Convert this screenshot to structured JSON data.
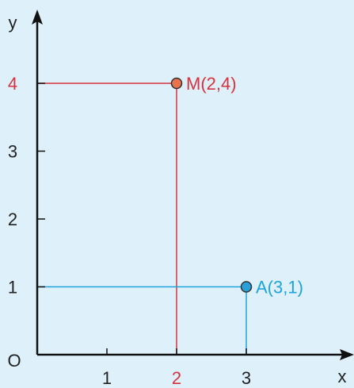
{
  "axes": {
    "x_label": "x",
    "y_label": "y",
    "origin_label": "O",
    "x_range": [
      0,
      4
    ],
    "y_range": [
      0,
      4.6
    ],
    "x_ticks": [
      {
        "value": 1,
        "label": "1",
        "color": "#222222"
      },
      {
        "value": 2,
        "label": "2",
        "color": "#d5343e"
      },
      {
        "value": 3,
        "label": "3",
        "color": "#222222"
      }
    ],
    "y_ticks": [
      {
        "value": 1,
        "label": "1",
        "color": "#222222"
      },
      {
        "value": 2,
        "label": "2",
        "color": "#222222"
      },
      {
        "value": 3,
        "label": "3",
        "color": "#222222"
      },
      {
        "value": 4,
        "label": "4",
        "color": "#d5343e"
      }
    ],
    "axis_color": "#111111"
  },
  "points": [
    {
      "name": "M",
      "label": "M(2,4)",
      "x": 2,
      "y": 4,
      "color": "#d5343e",
      "fill": "#e8734e"
    },
    {
      "name": "A",
      "label": "A(3,1)",
      "x": 3,
      "y": 1,
      "color": "#1ea4dc",
      "fill": "#2aa0d8"
    }
  ],
  "background": "#def0fa"
}
